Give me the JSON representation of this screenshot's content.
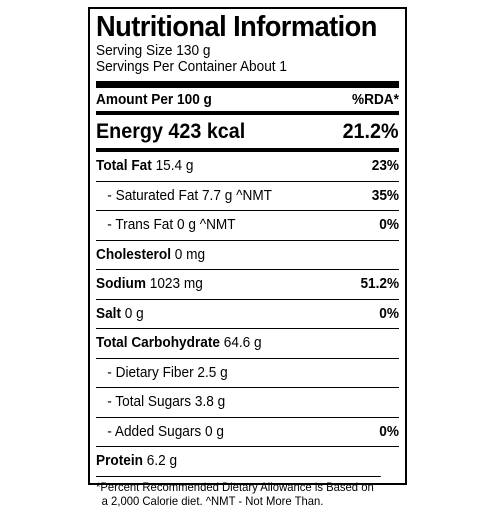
{
  "panel": {
    "title": "Nutritional Information",
    "serving_size": "Serving Size 130 g",
    "servings_per_container": "Servings Per Container About 1"
  },
  "header": {
    "amount": "Amount Per 100 g",
    "rda": "%RDA*"
  },
  "energy": {
    "label": "Energy 423 kcal",
    "rda": "21.2%"
  },
  "rows": [
    {
      "label": "Total Fat",
      "amount": " 15.4 g",
      "rda": "23%"
    },
    {
      "label": "- Saturated Fat 7.7 g  ^NMT",
      "rda": "35%"
    },
    {
      "label": "- Trans Fat 0 g  ^NMT",
      "rda": "0%"
    },
    {
      "label": "Cholesterol",
      "amount": " 0 mg",
      "rda": ""
    },
    {
      "label": "Sodium",
      "amount": " 1023 mg",
      "rda": "51.2%"
    },
    {
      "label": "Salt",
      "amount": " 0 g",
      "rda": "0%"
    },
    {
      "label": "Total Carbohydrate",
      "amount": " 64.6 g",
      "rda": ""
    },
    {
      "label": "- Dietary Fiber 2.5 g",
      "rda": ""
    },
    {
      "label": "- Total Sugars 3.8 g",
      "rda": ""
    },
    {
      "label": "- Added Sugars 0 g",
      "rda": "0%"
    },
    {
      "label": "Protein",
      "amount": " 6.2 g",
      "rda": ""
    }
  ],
  "footnote": {
    "line1": "*Percent Recommended Dietary Allowance is Based on",
    "line2": "a 2,000 Calorie diet.  ^NMT - Not More Than."
  }
}
